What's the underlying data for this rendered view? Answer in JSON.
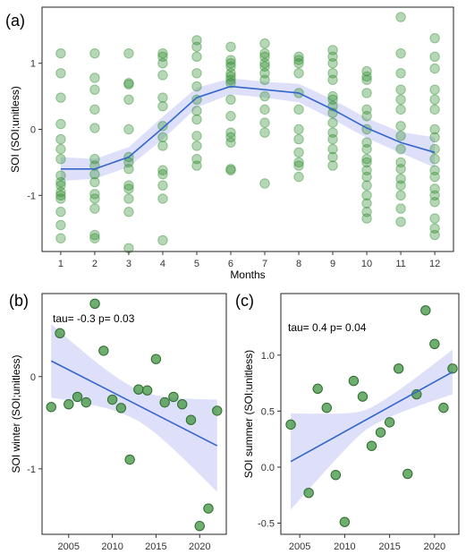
{
  "chart_data": [
    {
      "type": "scatter",
      "panel_label": "(a)",
      "xlabel": "Months",
      "ylabel": "SOI (SOI;unitless)",
      "xlim": [
        0.45,
        12.55
      ],
      "ylim": [
        -1.85,
        1.85
      ],
      "xticks": [
        1,
        2,
        3,
        4,
        5,
        6,
        7,
        8,
        9,
        10,
        11,
        12
      ],
      "xtick_labels": [
        "1",
        "2",
        "3",
        "4",
        "5",
        "6",
        "7",
        "8",
        "9",
        "10",
        "11",
        "12"
      ],
      "yticks": [
        -1,
        0,
        1
      ],
      "ytick_labels": [
        "-1",
        "0",
        "1"
      ],
      "grid": false,
      "point_color": "#2e8b2e",
      "smooth_color": "#3366cc",
      "band_color": "#c8ccf5",
      "points": {
        "1": [
          1.15,
          0.85,
          0.48,
          0.08,
          -0.15,
          -0.3,
          -0.45,
          -0.7,
          -0.8,
          -0.85,
          -0.95,
          -1.0,
          -1.05,
          -1.25,
          -1.45,
          -1.65
        ],
        "2": [
          1.15,
          0.78,
          0.6,
          0.3,
          0.02,
          -0.45,
          -0.55,
          -0.68,
          -0.8,
          -0.98,
          -1.05,
          -1.2,
          -1.6,
          -1.65
        ],
        "3": [
          1.15,
          0.7,
          0.68,
          0.45,
          0.0,
          -0.42,
          -0.5,
          -0.6,
          -0.85,
          -0.9,
          -1.05,
          -1.25,
          -1.8
        ],
        "4": [
          1.15,
          1.1,
          1.0,
          0.82,
          0.48,
          0.35,
          0.05,
          -0.12,
          -0.25,
          -0.62,
          -0.68,
          -0.85,
          -1.05,
          -1.68
        ],
        "5": [
          1.35,
          1.25,
          1.1,
          0.85,
          0.65,
          0.45,
          0.28,
          0.15,
          -0.1,
          -0.25,
          -0.45,
          -0.55
        ],
        "6": [
          1.25,
          1.05,
          1.0,
          0.95,
          0.85,
          0.8,
          0.75,
          0.7,
          0.45,
          0.2,
          -0.05,
          -0.12,
          -0.2,
          -0.6,
          -0.62
        ],
        "7": [
          1.3,
          1.15,
          1.1,
          1.0,
          0.95,
          0.85,
          0.75,
          0.5,
          0.3,
          0.1,
          -0.05,
          -0.82
        ],
        "8": [
          1.1,
          1.05,
          1.0,
          0.85,
          0.55,
          0.3,
          0.0,
          -0.15,
          -0.35,
          -0.5,
          -0.55,
          -0.72
        ],
        "9": [
          1.2,
          1.1,
          1.0,
          0.85,
          0.75,
          0.5,
          0.45,
          0.35,
          0.25,
          0.1,
          -0.05,
          -0.15,
          -0.3,
          -0.42,
          -0.55
        ],
        "10": [
          0.88,
          0.8,
          0.75,
          0.55,
          0.3,
          0.2,
          0.0,
          -0.2,
          -0.3,
          -0.45,
          -0.5,
          -0.62,
          -0.72,
          -0.85,
          -1.0,
          -1.12,
          -1.25,
          -1.35
        ],
        "11": [
          1.7,
          1.15,
          0.85,
          0.6,
          0.45,
          0.3,
          0.05,
          -0.1,
          -0.3,
          -0.5,
          -0.6,
          -0.75,
          -0.85,
          -1.0,
          -1.2,
          -1.4
        ],
        "12": [
          1.38,
          1.1,
          0.92,
          0.6,
          0.45,
          0.3,
          0.0,
          -0.12,
          -0.3,
          -0.45,
          -0.62,
          -0.72,
          -0.9,
          -1.0,
          -1.1,
          -1.35,
          -1.5,
          -1.6
        ]
      },
      "smooth": {
        "x": [
          1,
          2,
          3,
          4,
          5,
          6,
          7,
          8,
          9,
          10,
          11,
          12
        ],
        "y": [
          -0.6,
          -0.6,
          -0.42,
          0.02,
          0.48,
          0.65,
          0.6,
          0.55,
          0.3,
          0.02,
          -0.2,
          -0.35
        ],
        "lo": [
          -0.78,
          -0.75,
          -0.57,
          -0.15,
          0.33,
          0.53,
          0.48,
          0.41,
          0.15,
          -0.13,
          -0.36,
          -0.58
        ],
        "hi": [
          -0.42,
          -0.45,
          -0.27,
          0.19,
          0.63,
          0.77,
          0.72,
          0.69,
          0.45,
          0.17,
          -0.04,
          -0.12
        ]
      }
    },
    {
      "type": "scatter",
      "panel_label": "(b)",
      "xlabel": "",
      "ylabel": "SOI winter (SOI;unitless)",
      "annotation": "tau= -0.3 p= 0.03",
      "xlim": [
        2001.95,
        2023.05
      ],
      "ylim": [
        -1.71,
        0.9
      ],
      "xticks": [
        2005,
        2010,
        2015,
        2020
      ],
      "xtick_labels": [
        "2005",
        "2010",
        "2015",
        "2020"
      ],
      "yticks": [
        -1,
        0
      ],
      "ytick_labels": [
        "-1",
        "0"
      ],
      "grid": false,
      "point_color": "#4a9a4a",
      "smooth_color": "#3366cc",
      "band_color": "#c8ccf5",
      "x": [
        2003,
        2004,
        2005,
        2006,
        2007,
        2008,
        2009,
        2010,
        2011,
        2012,
        2013,
        2014,
        2015,
        2016,
        2017,
        2018,
        2019,
        2020,
        2021,
        2022
      ],
      "y": [
        -0.33,
        0.47,
        -0.3,
        -0.22,
        -0.28,
        0.79,
        0.28,
        -0.25,
        -0.34,
        -0.9,
        -0.14,
        -0.15,
        0.19,
        -0.28,
        -0.22,
        -0.3,
        -0.47,
        -1.62,
        -1.43,
        -0.37
      ],
      "fit": {
        "x": [
          2003,
          2022
        ],
        "y": [
          0.17,
          -0.75
        ],
        "lo": [
          -0.23,
          -1.25
        ],
        "hi": [
          0.57,
          -0.25
        ]
      }
    },
    {
      "type": "scatter",
      "panel_label": "(c)",
      "xlabel": "",
      "ylabel": "SOI summer (SOI;unitless)",
      "annotation": "tau= 0.4 p= 0.04",
      "xlim": [
        2002.9,
        2022.7
      ],
      "ylim": [
        -0.6,
        1.55
      ],
      "xticks": [
        2005,
        2010,
        2015,
        2020
      ],
      "xtick_labels": [
        "2005",
        "2010",
        "2015",
        "2020"
      ],
      "yticks": [
        -0.5,
        0.0,
        0.5,
        1.0
      ],
      "ytick_labels": [
        "-0.5",
        "0.0",
        "0.5",
        "1.0"
      ],
      "grid": false,
      "point_color": "#4a9a4a",
      "smooth_color": "#3366cc",
      "band_color": "#c8ccf5",
      "x": [
        2004,
        2006,
        2007,
        2008,
        2009,
        2010,
        2011,
        2012,
        2013,
        2014,
        2015,
        2016,
        2017,
        2018,
        2019,
        2020,
        2021,
        2022
      ],
      "y": [
        0.38,
        -0.23,
        0.7,
        0.53,
        -0.07,
        -0.49,
        0.77,
        0.63,
        0.19,
        0.31,
        0.4,
        0.88,
        -0.06,
        0.65,
        1.4,
        1.1,
        0.53,
        0.88
      ],
      "fit": {
        "x": [
          2004,
          2022
        ],
        "y": [
          0.05,
          0.85
        ],
        "lo": [
          -0.38,
          0.65
        ],
        "hi": [
          0.48,
          1.05
        ]
      }
    }
  ]
}
